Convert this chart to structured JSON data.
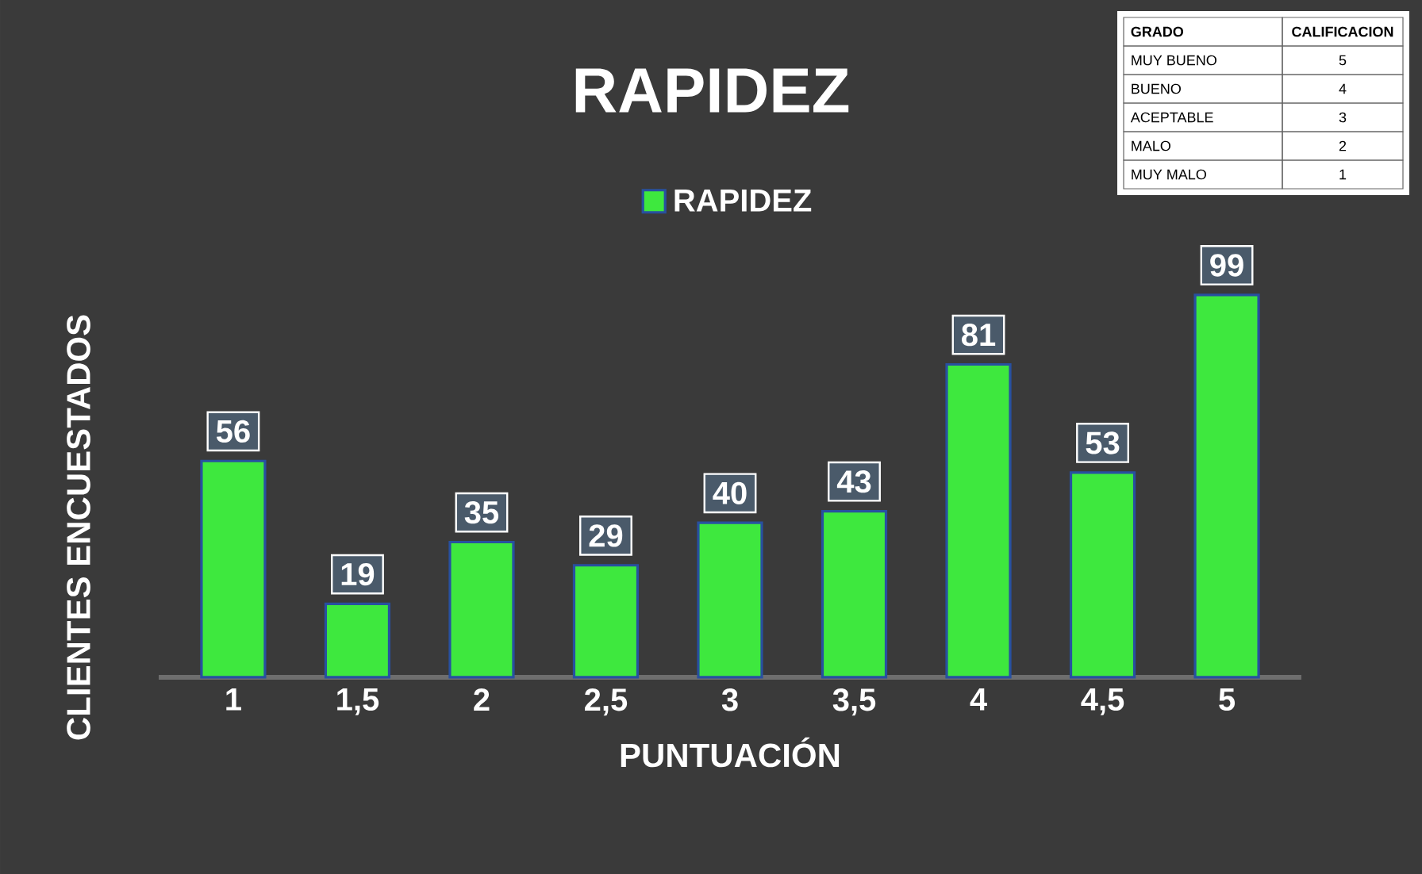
{
  "chart_data": {
    "type": "bar",
    "title": "RAPIDEZ",
    "xlabel": "PUNTUACIÓN",
    "ylabel": "CLIENTES ENCUESTADOS",
    "categories": [
      "1",
      "1,5",
      "2",
      "2,5",
      "3",
      "3,5",
      "4",
      "4,5",
      "5"
    ],
    "series": [
      {
        "name": "RAPIDEZ",
        "color": "#3ee83e",
        "values": [
          56,
          19,
          35,
          29,
          40,
          43,
          81,
          53,
          99
        ]
      }
    ],
    "data_labels": true,
    "legend": "top",
    "annotations": [
      "GRADO",
      "CALIFICACION",
      "MUY BUENO",
      "5",
      "BUENO",
      "4",
      "ACEPTABLE",
      "3",
      "MALO",
      "2",
      "MUY MALO",
      "1"
    ]
  }
}
